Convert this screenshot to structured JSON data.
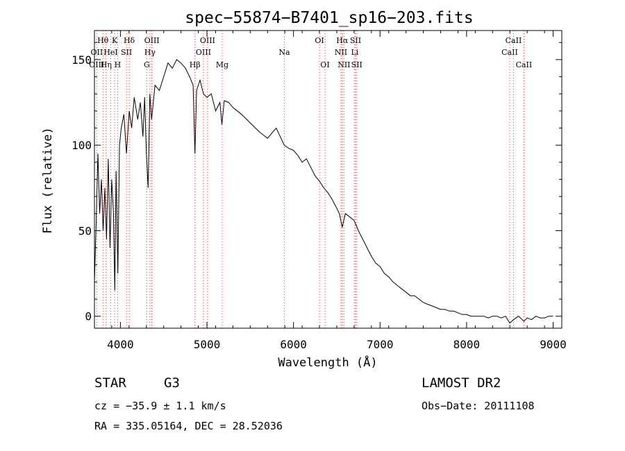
{
  "chart_data": {
    "type": "line",
    "title": "spec−55874−B7401_sp16−203.fits",
    "xlabel": "Wavelength (Å)",
    "ylabel": "Flux (relative)",
    "xlim": [
      3700,
      9100
    ],
    "ylim": [
      -7,
      167
    ],
    "xticks": [
      4000,
      5000,
      6000,
      7000,
      8000,
      9000
    ],
    "yticks": [
      0,
      50,
      100,
      150
    ],
    "grid": false,
    "series": [
      {
        "x": [
          3700,
          3720,
          3740,
          3760,
          3780,
          3800,
          3820,
          3840,
          3860,
          3880,
          3900,
          3920,
          3935,
          3950,
          3970,
          3990,
          4010,
          4040,
          4070,
          4102,
          4130,
          4160,
          4200,
          4230,
          4260,
          4280,
          4300,
          4320,
          4340,
          4360,
          4400,
          4450,
          4500,
          4550,
          4600,
          4650,
          4700,
          4750,
          4800,
          4840,
          4861,
          4880,
          4920,
          4960,
          5000,
          5050,
          5100,
          5150,
          5172,
          5200,
          5250,
          5300,
          5400,
          5500,
          5600,
          5700,
          5800,
          5893,
          5950,
          6000,
          6050,
          6100,
          6150,
          6200,
          6250,
          6300,
          6350,
          6400,
          6450,
          6500,
          6530,
          6563,
          6600,
          6650,
          6700,
          6750,
          6800,
          6850,
          6900,
          6950,
          7000,
          7050,
          7100,
          7150,
          7200,
          7250,
          7300,
          7350,
          7400,
          7450,
          7500,
          7550,
          7600,
          7650,
          7700,
          7750,
          7800,
          7850,
          7900,
          7950,
          8000,
          8050,
          8100,
          8150,
          8200,
          8250,
          8300,
          8350,
          8400,
          8450,
          8498,
          8542,
          8600,
          8662,
          8700,
          8750,
          8800,
          8850,
          8900,
          8950,
          9000
        ],
        "y": [
          20,
          55,
          95,
          60,
          80,
          50,
          75,
          45,
          92,
          40,
          80,
          60,
          15,
          85,
          25,
          100,
          110,
          118,
          95,
          120,
          110,
          128,
          115,
          125,
          105,
          128,
          95,
          75,
          130,
          115,
          135,
          132,
          140,
          148,
          145,
          150,
          148,
          145,
          140,
          135,
          95,
          132,
          138,
          130,
          128,
          130,
          120,
          125,
          112,
          126,
          125,
          122,
          118,
          113,
          108,
          104,
          110,
          100,
          98,
          97,
          94,
          90,
          92,
          87,
          82,
          79,
          75,
          72,
          68,
          63,
          60,
          52,
          60,
          58,
          56,
          50,
          45,
          40,
          35,
          31,
          29,
          25,
          23,
          20,
          18,
          16,
          14,
          12,
          12,
          10,
          8,
          7,
          6,
          5,
          4,
          4,
          3,
          3,
          2,
          1,
          1,
          0,
          0,
          0,
          0,
          -1,
          0,
          0,
          -1,
          0,
          -4,
          -2,
          0,
          -3,
          -1,
          -2,
          0,
          -1,
          -1,
          0,
          0
        ]
      }
    ],
    "lines": [
      {
        "label": "Hθ",
        "wavelength": 3797.9,
        "row": 1
      },
      {
        "label": "OII",
        "wavelength": 3727.1,
        "row": 2
      },
      {
        "label": "OIII",
        "wavelength": 3726.0,
        "row": 3
      },
      {
        "label": "Hη",
        "wavelength": 3835.4,
        "row": 3
      },
      {
        "label": "HeI",
        "wavelength": 3888.7,
        "row": 2
      },
      {
        "label": "K",
        "wavelength": 3933.7,
        "row": 1
      },
      {
        "label": "H",
        "wavelength": 3968.5,
        "row": 3
      },
      {
        "label": "SII",
        "wavelength": 4070.0,
        "row": 2
      },
      {
        "label": "Hδ",
        "wavelength": 4101.7,
        "row": 1
      },
      {
        "label": "OIII",
        "wavelength": 4363.0,
        "row": 1
      },
      {
        "label": "Hγ",
        "wavelength": 4340.5,
        "row": 2
      },
      {
        "label": "G",
        "wavelength": 4305.0,
        "row": 3
      },
      {
        "label": "OIII",
        "wavelength": 5006.8,
        "row": 1
      },
      {
        "label": "OIII",
        "wavelength": 4958.9,
        "row": 2
      },
      {
        "label": "Hβ",
        "wavelength": 4861.3,
        "row": 3
      },
      {
        "label": "Mg",
        "wavelength": 5175.3,
        "row": 3
      },
      {
        "label": "Na",
        "wavelength": 5894.0,
        "row": 2
      },
      {
        "label": "OI",
        "wavelength": 6300.3,
        "row": 1
      },
      {
        "label": "OI",
        "wavelength": 6363.8,
        "row": 3
      },
      {
        "label": "Hα",
        "wavelength": 6562.8,
        "row": 1
      },
      {
        "label": "SII",
        "wavelength": 6716.4,
        "row": 1
      },
      {
        "label": "NII",
        "wavelength": 6548.1,
        "row": 2
      },
      {
        "label": "Li",
        "wavelength": 6707.8,
        "row": 2
      },
      {
        "label": "NII",
        "wavelength": 6583.4,
        "row": 3
      },
      {
        "label": "SII",
        "wavelength": 6730.8,
        "row": 3
      },
      {
        "label": "CaII",
        "wavelength": 8542.1,
        "row": 1
      },
      {
        "label": "CaII",
        "wavelength": 8498.0,
        "row": 2
      },
      {
        "label": "CaII",
        "wavelength": 8662.1,
        "row": 3
      }
    ]
  },
  "info": {
    "class_label": "STAR",
    "subclass": "G3",
    "survey": "LAMOST DR2",
    "redshift": "cz = −35.9 ± 1.1 km/s",
    "obs_date": "Obs−Date: 20111108",
    "coords": "RA = 335.05164, DEC =  28.52036"
  }
}
